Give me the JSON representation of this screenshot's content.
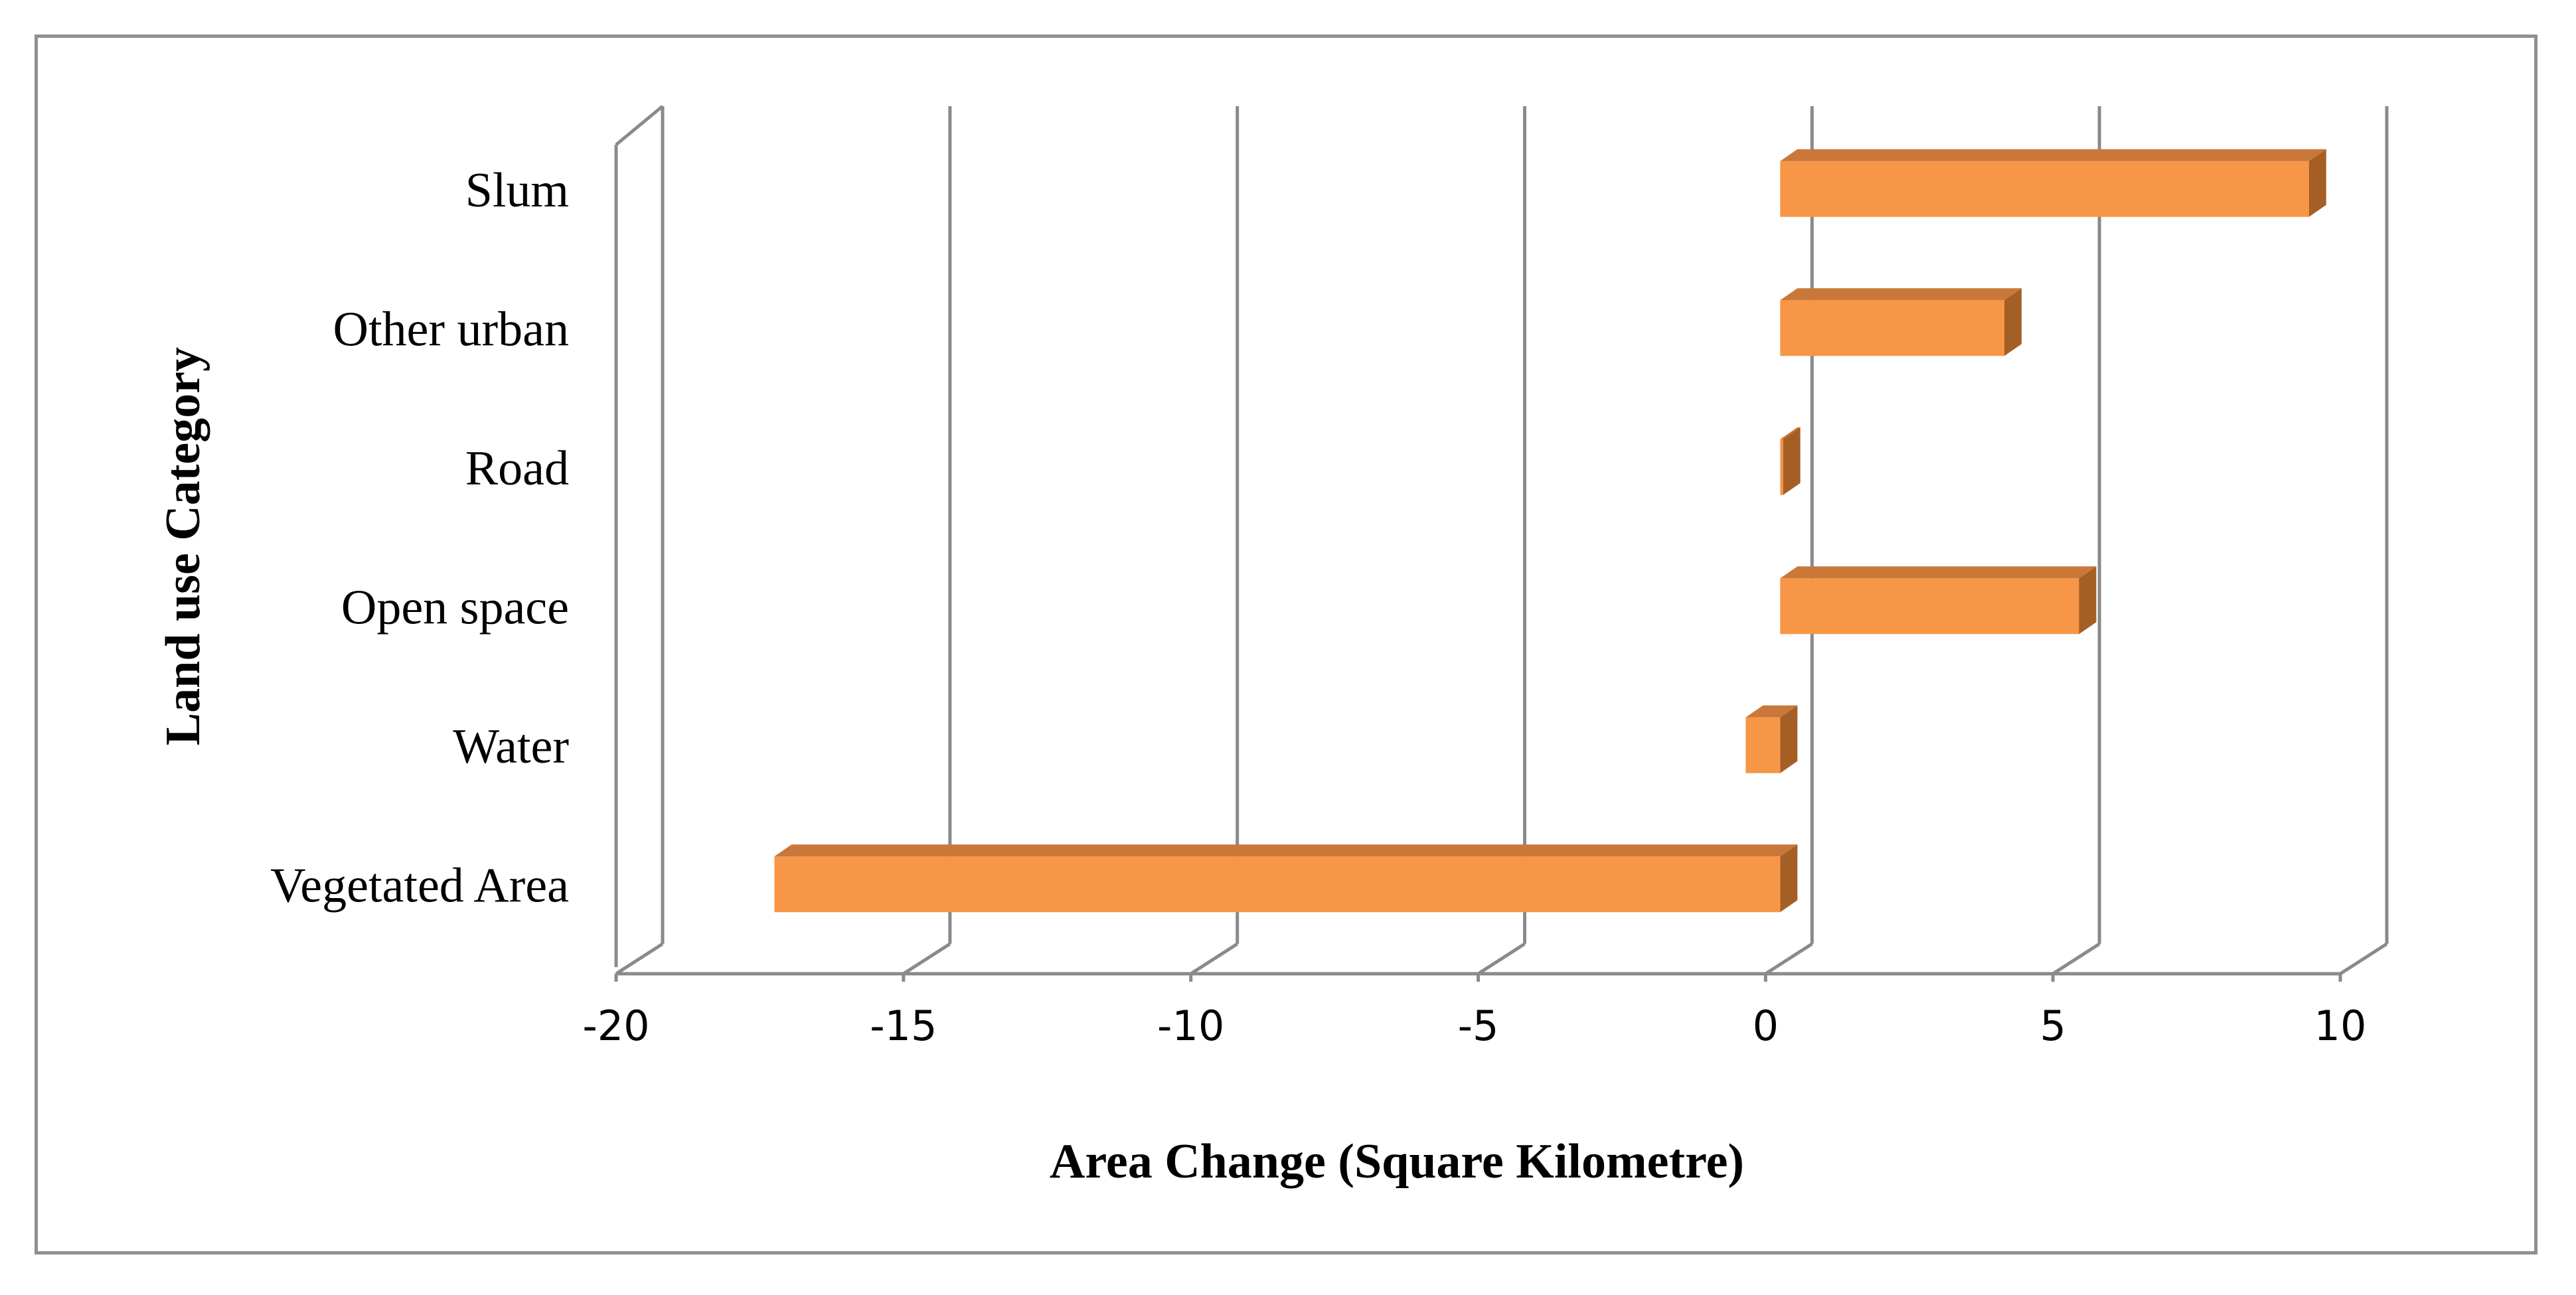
{
  "chart_data": {
    "type": "bar",
    "orientation": "horizontal",
    "three_d": true,
    "categories": [
      "Vegetated Area",
      "Water",
      "Open space",
      "Road",
      "Other urban",
      "Slum"
    ],
    "values": [
      -17.5,
      -0.6,
      5.2,
      0.05,
      3.9,
      9.2
    ],
    "xlabel": "Area Change (Square Kilometre)",
    "ylabel": "Land use Category",
    "xlim": [
      -20,
      10
    ],
    "xticks": [
      -20,
      -15,
      -10,
      -5,
      0,
      5,
      10
    ],
    "grid": true,
    "legend": "none",
    "colors": {
      "bar_front": "#f79646",
      "bar_top": "#c9783a",
      "bar_side": "#a55f25",
      "grid": "#8a8a8a"
    }
  }
}
